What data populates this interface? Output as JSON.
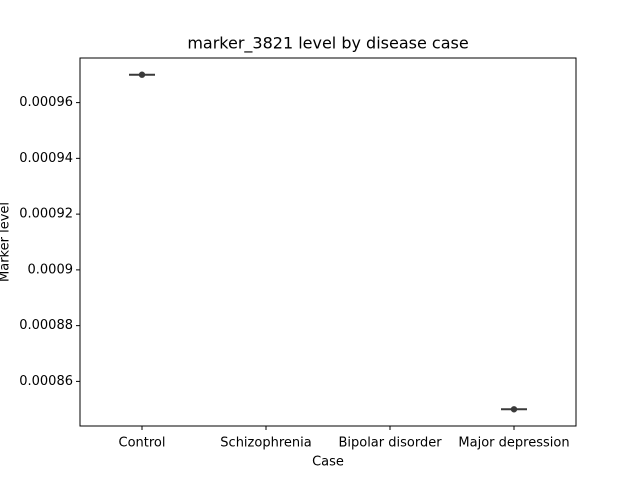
{
  "chart_data": {
    "type": "point",
    "title": "marker_3821 level by disease case",
    "xlabel": "Case",
    "ylabel": "Marker level",
    "categories": [
      "Control",
      "Schizophrenia",
      "Bipolar disorder",
      "Major depression"
    ],
    "values": [
      0.00097,
      null,
      null,
      0.00085
    ],
    "color": "#3a3a3a",
    "ylim": [
      0.000844,
      0.000976
    ],
    "yticks": [
      0.00086,
      0.00088,
      0.0009,
      0.00092,
      0.00094,
      0.00096
    ],
    "grid": false
  }
}
